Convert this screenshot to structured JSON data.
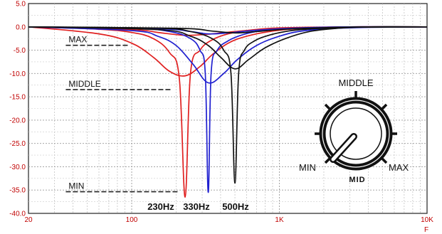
{
  "chart_data": {
    "type": "line",
    "x_scale": "log",
    "xlim": [
      20,
      10000
    ],
    "ylim": [
      -40,
      5
    ],
    "grid": true,
    "xlabel": "F",
    "ylabel": "",
    "title": "",
    "yticks": [
      {
        "value": 5,
        "label": "5.0"
      },
      {
        "value": 0,
        "label": "0.0"
      },
      {
        "value": -5,
        "label": "-5.0"
      },
      {
        "value": -10,
        "label": "-10.0"
      },
      {
        "value": -15,
        "label": "-15.0"
      },
      {
        "value": -20,
        "label": "-20.0"
      },
      {
        "value": -25,
        "label": "-25.0"
      },
      {
        "value": -30,
        "label": "-30.0"
      },
      {
        "value": -35,
        "label": "-35.0"
      },
      {
        "value": -40,
        "label": "-40.0"
      }
    ],
    "xticks": [
      {
        "value": 20,
        "label": "20"
      },
      {
        "value": 100,
        "label": "100"
      },
      {
        "value": 1000,
        "label": "1K"
      },
      {
        "value": 10000,
        "label": "10K"
      }
    ],
    "series": [
      {
        "color": "#e02020",
        "x": [
          20,
          60,
          100,
          140,
          180,
          210,
          230,
          250,
          290,
          350,
          450,
          600,
          900,
          1500,
          3000,
          10000
        ],
        "y": [
          0,
          -0.5,
          -1.2,
          -2.5,
          -5.5,
          -11,
          -36.5,
          -10,
          -5,
          -2.8,
          -1.5,
          -0.8,
          -0.3,
          -0.1,
          0,
          0
        ]
      },
      {
        "color": "#e02020",
        "x": [
          20,
          60,
          100,
          140,
          180,
          230,
          290,
          350,
          450,
          600,
          900,
          1500,
          3000,
          10000
        ],
        "y": [
          0,
          -1.5,
          -3.5,
          -6.5,
          -9.5,
          -10.5,
          -8.5,
          -6,
          -3.5,
          -2,
          -0.9,
          -0.3,
          -0.1,
          0
        ]
      },
      {
        "color": "#e02020",
        "x": [
          20,
          100,
          150,
          230,
          350,
          500,
          800,
          1500,
          3000,
          10000
        ],
        "y": [
          0,
          -0.6,
          -1.2,
          -1.8,
          -1.5,
          -1,
          -0.5,
          -0.2,
          0,
          0
        ]
      },
      {
        "color": "#2020d0",
        "x": [
          20,
          100,
          180,
          250,
          290,
          315,
          330,
          345,
          380,
          450,
          550,
          700,
          1000,
          1500,
          3000,
          10000
        ],
        "y": [
          0,
          -0.3,
          -1,
          -2.5,
          -5,
          -10,
          -35.5,
          -10,
          -5,
          -3,
          -1.8,
          -1,
          -0.5,
          -0.2,
          0,
          0
        ]
      },
      {
        "color": "#2020d0",
        "x": [
          20,
          100,
          150,
          200,
          260,
          330,
          420,
          520,
          700,
          1000,
          1500,
          3000,
          10000
        ],
        "y": [
          0,
          -0.8,
          -2,
          -4,
          -8,
          -12,
          -10,
          -7,
          -4,
          -2,
          -0.8,
          -0.2,
          0
        ]
      },
      {
        "color": "#2020d0",
        "x": [
          20,
          150,
          250,
          330,
          450,
          600,
          900,
          1500,
          3000,
          10000
        ],
        "y": [
          0,
          -0.4,
          -1,
          -1.5,
          -1.3,
          -0.9,
          -0.5,
          -0.2,
          0,
          0
        ]
      },
      {
        "color": "#111111",
        "x": [
          20,
          150,
          250,
          350,
          420,
          470,
          500,
          530,
          580,
          680,
          850,
          1100,
          1500,
          3000,
          10000
        ],
        "y": [
          0,
          -0.3,
          -1,
          -2.5,
          -5,
          -10,
          -33.5,
          -10,
          -5,
          -3,
          -1.8,
          -1,
          -0.5,
          -0.1,
          0
        ]
      },
      {
        "color": "#111111",
        "x": [
          20,
          150,
          250,
          330,
          400,
          500,
          620,
          800,
          1100,
          1600,
          2500,
          4000,
          10000
        ],
        "y": [
          0,
          -0.6,
          -2,
          -4,
          -6.5,
          -9,
          -7,
          -4.5,
          -2.5,
          -1,
          -0.3,
          0,
          0
        ]
      },
      {
        "color": "#111111",
        "x": [
          20,
          200,
          350,
          500,
          700,
          1000,
          1500,
          2500,
          4000,
          10000
        ],
        "y": [
          0,
          -0.3,
          -0.9,
          -1.3,
          -1,
          -0.6,
          -0.3,
          -0.1,
          0,
          0
        ]
      }
    ],
    "annotations": [
      {
        "text": "MAX",
        "x": 35,
        "y": -3.8
      },
      {
        "text": "MIDDLE",
        "x": 35,
        "y": -13.3
      },
      {
        "text": "MIN",
        "x": 35,
        "y": -35.2
      }
    ],
    "freq_labels": [
      "230Hz",
      "330Hz",
      "500Hz"
    ]
  },
  "knob": {
    "title": "MID",
    "top_label": "MIDDLE",
    "left_label": "MIN",
    "right_label": "MAX"
  }
}
